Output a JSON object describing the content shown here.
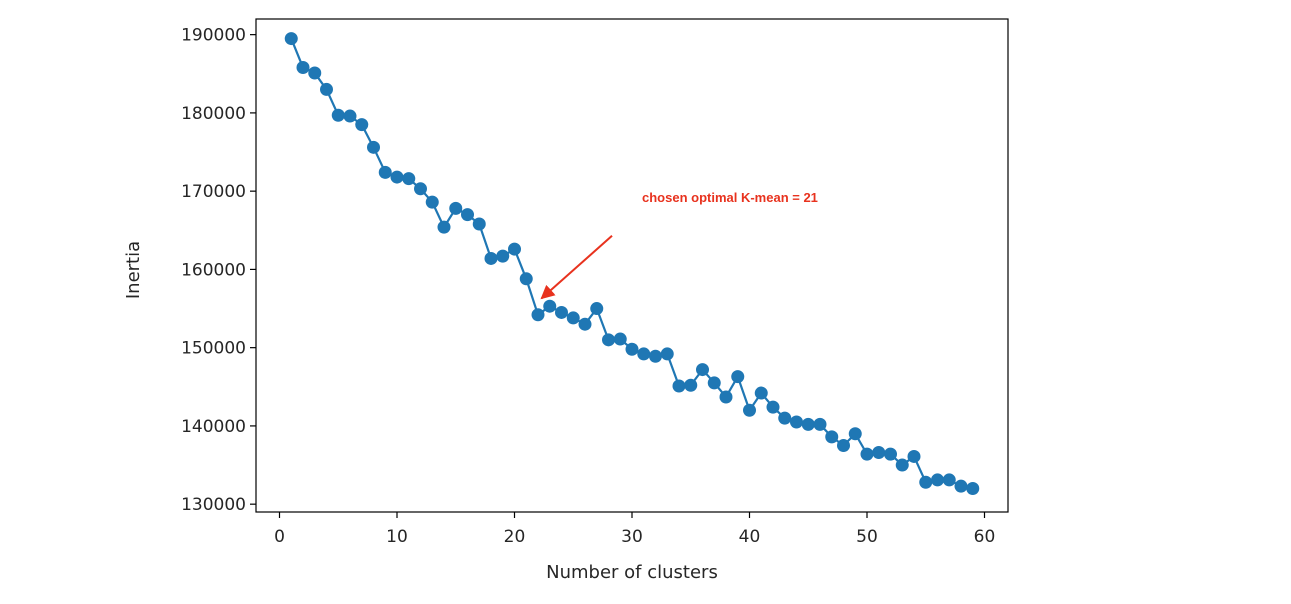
{
  "chart_data": {
    "type": "line",
    "xlabel": "Number of clusters",
    "ylabel": "Inertia",
    "xlim": [
      -2,
      62
    ],
    "ylim": [
      129000,
      192000
    ],
    "xticks": [
      0,
      10,
      20,
      30,
      40,
      50,
      60
    ],
    "yticks": [
      130000,
      140000,
      150000,
      160000,
      170000,
      180000,
      190000
    ],
    "grid": false,
    "marker": "circle",
    "series": [
      {
        "color": "#1f77b4",
        "x": [
          1,
          2,
          3,
          4,
          5,
          6,
          7,
          8,
          9,
          10,
          11,
          12,
          13,
          14,
          15,
          16,
          17,
          18,
          19,
          20,
          21,
          22,
          23,
          24,
          25,
          26,
          27,
          28,
          29,
          30,
          31,
          32,
          33,
          34,
          35,
          36,
          37,
          38,
          39,
          40,
          41,
          42,
          43,
          44,
          45,
          46,
          47,
          48,
          49,
          50,
          51,
          52,
          53,
          54,
          55,
          56,
          57,
          58,
          59
        ],
        "y": [
          189500,
          185800,
          185100,
          183000,
          179700,
          179600,
          178500,
          175600,
          172400,
          171800,
          171600,
          170300,
          168600,
          165400,
          167800,
          167000,
          165800,
          161400,
          161700,
          162600,
          158800,
          154200,
          155300,
          154500,
          153800,
          153000,
          155000,
          151000,
          151100,
          149800,
          149200,
          148900,
          149200,
          145100,
          145200,
          147200,
          145500,
          143700,
          146300,
          142000,
          144200,
          142400,
          141000,
          140500,
          140200,
          140200,
          138600,
          137500,
          139000,
          136400,
          136600,
          136400,
          135000,
          136100,
          132800,
          133100,
          133100,
          132300,
          132000
        ]
      }
    ],
    "annotation": {
      "text": "chosen optimal K-mean = 21",
      "color": "#e8321e",
      "points_to": {
        "x": 22.3,
        "y": 156300
      },
      "arrow_from": {
        "x": 28.3,
        "y": 164300
      }
    }
  }
}
